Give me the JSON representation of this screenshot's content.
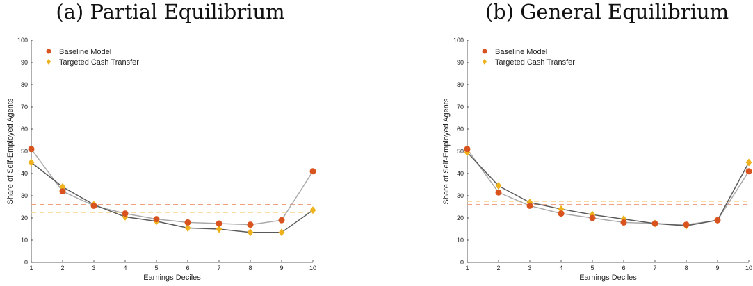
{
  "panels": [
    {
      "title": "(a) Partial Equilibrium"
    },
    {
      "title": "(b) General Equilibrium"
    }
  ],
  "colors": {
    "baseline": "#d9531e",
    "targeted": "#eeb21e",
    "baseline_line": "#5a5a5a",
    "targeted_line": "#aaaaaa",
    "baseline_mean": "#f0a080",
    "targeted_mean": "#f7d28a"
  },
  "chart_data": [
    {
      "type": "line",
      "title": "(a) Partial Equilibrium",
      "xlabel": "Earnings Deciles",
      "ylabel": "Share of Self-Employed Agents",
      "x": [
        1,
        2,
        3,
        4,
        5,
        6,
        7,
        8,
        9,
        10
      ],
      "xlim": [
        1,
        10
      ],
      "ylim": [
        0,
        100
      ],
      "yticks": [
        0,
        10,
        20,
        30,
        40,
        50,
        60,
        70,
        80,
        90,
        100
      ],
      "grid": false,
      "legend": "top-left",
      "series": [
        {
          "name": "Baseline Model",
          "marker": "circle",
          "values": [
            51,
            32,
            25.5,
            22,
            19.5,
            18,
            17.5,
            17,
            19,
            41
          ],
          "mean": 26
        },
        {
          "name": "Targeted Cash Transfer",
          "marker": "diamond",
          "values": [
            45,
            34,
            26,
            20.5,
            18.5,
            15.5,
            15,
            13.5,
            13.5,
            23.5
          ],
          "mean": 22.5
        }
      ]
    },
    {
      "type": "line",
      "title": "(b) General Equilibrium",
      "xlabel": "Earnings Deciles",
      "ylabel": "Share of Self-Employed Agents",
      "x": [
        1,
        2,
        3,
        4,
        5,
        6,
        7,
        8,
        9,
        10
      ],
      "xlim": [
        1,
        10
      ],
      "ylim": [
        0,
        100
      ],
      "yticks": [
        0,
        10,
        20,
        30,
        40,
        50,
        60,
        70,
        80,
        90,
        100
      ],
      "grid": false,
      "legend": "top-left",
      "series": [
        {
          "name": "Baseline Model",
          "marker": "circle",
          "values": [
            51,
            31.5,
            25.5,
            22,
            20,
            18,
            17.5,
            17,
            19,
            41
          ],
          "mean": 26
        },
        {
          "name": "Targeted Cash Transfer",
          "marker": "diamond",
          "values": [
            49.5,
            34.5,
            27,
            24,
            21.5,
            19.5,
            17.5,
            16.5,
            19,
            45
          ],
          "mean": 27.5
        }
      ]
    }
  ]
}
